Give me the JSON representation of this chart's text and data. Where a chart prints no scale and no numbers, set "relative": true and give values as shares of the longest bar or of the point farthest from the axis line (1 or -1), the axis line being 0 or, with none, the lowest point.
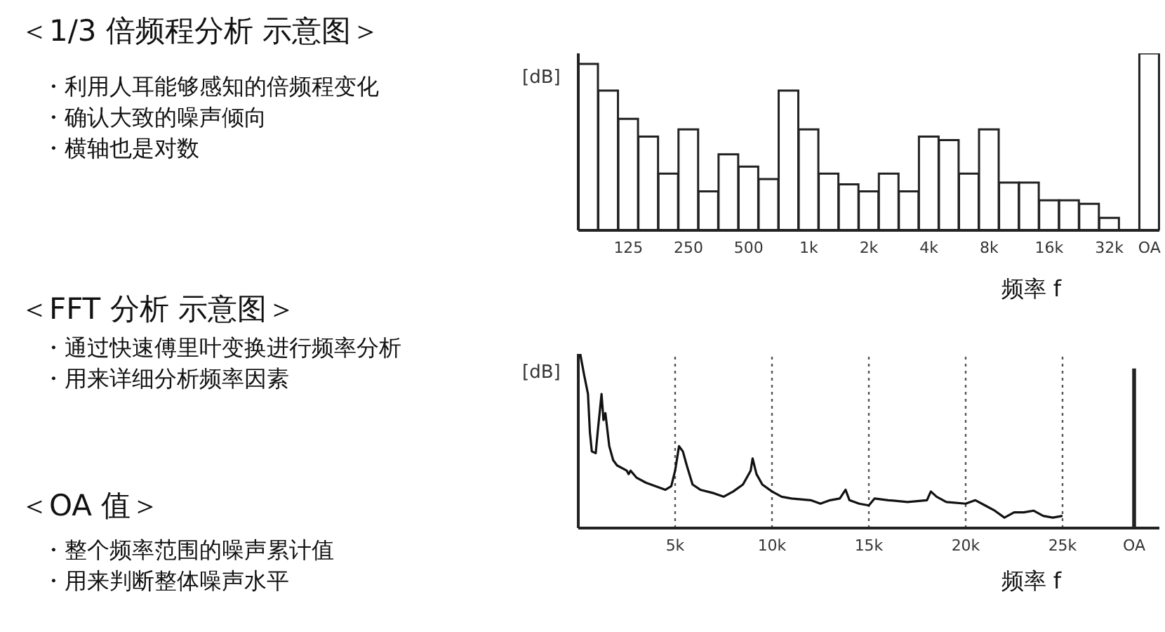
{
  "chart_data": [
    {
      "type": "other",
      "annotations": [
        "＜1/3 倍频程分析 示意图＞",
        "・利用人耳能够感知的倍频程变化",
        "・确认大致的噪声倾向",
        "・横轴也是对数",
        "＜FFT 分析 示意图＞",
        "・通过快速傅里叶变换进行频率分析",
        "・用来详细分析频率因素",
        "＜OA 值＞",
        "・整个频率范围的噪声累计值",
        "・用来判断整体噪声水平"
      ]
    },
    {
      "type": "bar",
      "ylabel": "[dB]",
      "xlabel": "频率 f",
      "relative": true,
      "color": "#ffffff",
      "categories": [
        null,
        null,
        "125",
        null,
        null,
        "250",
        null,
        null,
        "500",
        null,
        null,
        "1k",
        null,
        null,
        "2k",
        null,
        null,
        "4k",
        null,
        null,
        "8k",
        null,
        null,
        "16k",
        null,
        null,
        "32k",
        null,
        "OA"
      ],
      "values": [
        0.94,
        0.79,
        0.63,
        0.53,
        0.32,
        0.57,
        0.22,
        0.43,
        0.36,
        0.29,
        0.79,
        0.57,
        0.32,
        0.26,
        0.22,
        0.32,
        0.22,
        0.53,
        0.51,
        0.32,
        0.57,
        0.27,
        0.27,
        0.17,
        0.17,
        0.15,
        0.07,
        null,
        1
      ]
    },
    {
      "type": "line",
      "ylabel": "[dB]",
      "xlabel": "频率 f",
      "relative": true,
      "xlim": [
        0,
        30000
      ],
      "xticks": [
        {
          "value": 5000,
          "label": "5k"
        },
        {
          "value": 10000,
          "label": "10k"
        },
        {
          "value": 15000,
          "label": "15k"
        },
        {
          "value": 20000,
          "label": "20k"
        },
        {
          "value": 25000,
          "label": "25k"
        },
        {
          "value": 28700,
          "label": "OA"
        }
      ],
      "ref_lines": [
        {
          "axis": "x",
          "value": 5000,
          "line_style": "dotted",
          "color": "#555555"
        },
        {
          "axis": "x",
          "value": 10000,
          "line_style": "dotted",
          "color": "#555555"
        },
        {
          "axis": "x",
          "value": 15000,
          "line_style": "dotted",
          "color": "#555555"
        },
        {
          "axis": "x",
          "value": 20000,
          "line_style": "dotted",
          "color": "#555555"
        },
        {
          "axis": "x",
          "value": 25000,
          "line_style": "dotted",
          "color": "#555555"
        }
      ],
      "series": [
        {
          "type": "line",
          "color": "#111111",
          "x": [
            0,
            100,
            300,
            500,
            600,
            700,
            900,
            1000,
            1100,
            1200,
            1300,
            1400,
            1600,
            1800,
            2000,
            2500,
            2600,
            2700,
            3000,
            3500,
            4000,
            4500,
            4800,
            5000,
            5200,
            5400,
            5600,
            5900,
            6300,
            7000,
            7500,
            8000,
            8500,
            8900,
            9000,
            9200,
            9500,
            10000,
            10500,
            11000,
            12000,
            12500,
            13000,
            13500,
            13800,
            14000,
            14500,
            15000,
            15300,
            16000,
            17000,
            18000,
            18200,
            18500,
            19000,
            20000,
            20500,
            21000,
            21500,
            22000,
            22500,
            23000,
            23500,
            24000,
            24500,
            25000
          ],
          "values": [
            0.99,
            1,
            0.88,
            0.77,
            0.55,
            0.44,
            0.43,
            0.55,
            0.66,
            0.77,
            0.62,
            0.66,
            0.47,
            0.39,
            0.36,
            0.33,
            0.31,
            0.33,
            0.29,
            0.26,
            0.24,
            0.22,
            0.24,
            0.33,
            0.47,
            0.44,
            0.36,
            0.25,
            0.22,
            0.2,
            0.18,
            0.21,
            0.25,
            0.33,
            0.4,
            0.31,
            0.25,
            0.21,
            0.18,
            0.17,
            0.16,
            0.14,
            0.16,
            0.17,
            0.22,
            0.16,
            0.14,
            0.13,
            0.17,
            0.16,
            0.15,
            0.16,
            0.21,
            0.18,
            0.15,
            0.14,
            0.16,
            0.13,
            0.1,
            0.06,
            0.09,
            0.09,
            0.1,
            0.07,
            0.06,
            0.07
          ]
        },
        {
          "type": "bar",
          "color": "#ffffff",
          "x": [
            28700
          ],
          "values": [
            0.91
          ]
        }
      ]
    }
  ]
}
